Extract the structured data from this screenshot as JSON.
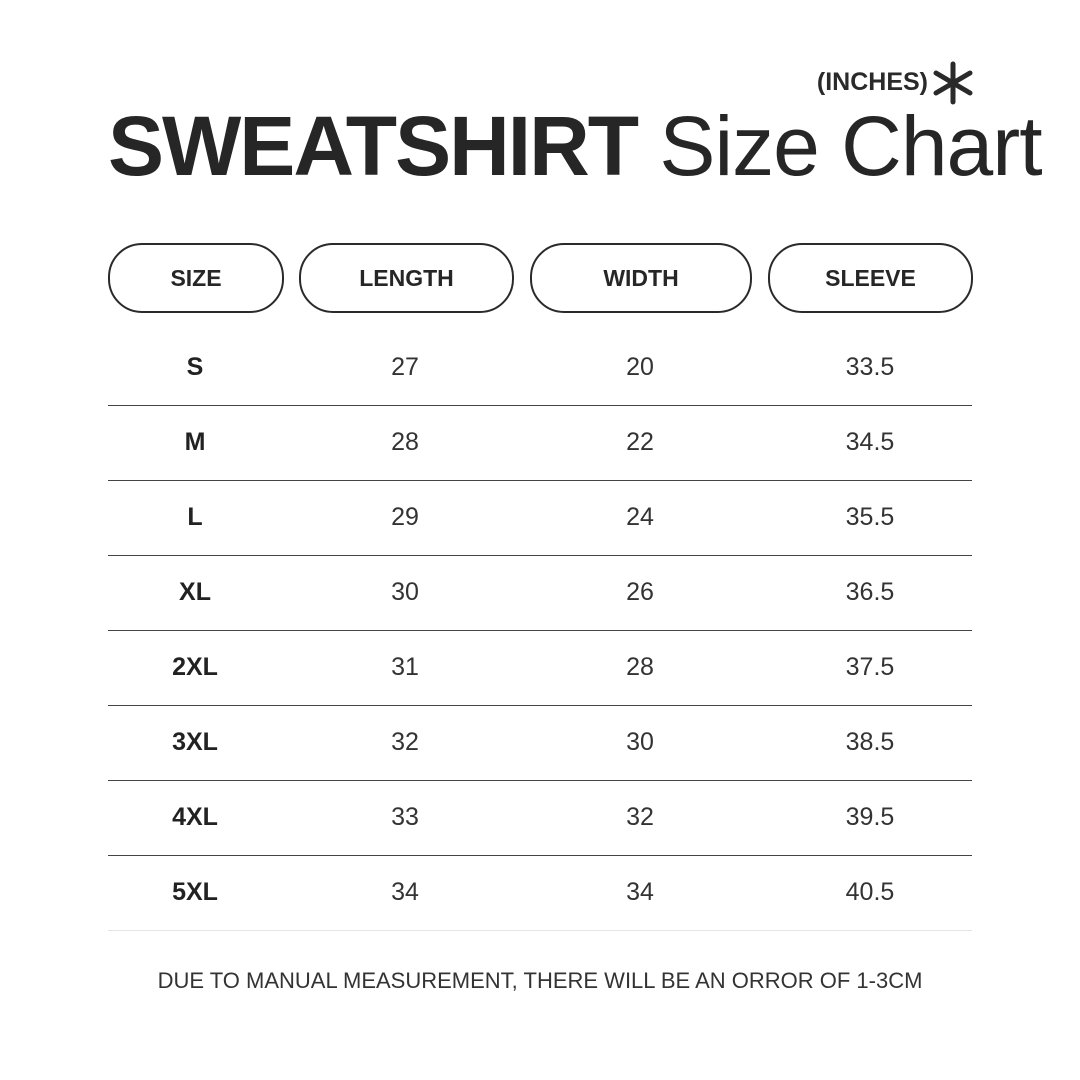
{
  "unit_label": "(INCHES)",
  "icon": "asterisk-icon",
  "title": {
    "bold": "SWEATSHIRT",
    "regular": "Size Chart"
  },
  "headers": [
    "SIZE",
    "LENGTH",
    "WIDTH",
    "SLEEVE"
  ],
  "rows": [
    [
      "S",
      "27",
      "20",
      "33.5"
    ],
    [
      "M",
      "28",
      "22",
      "34.5"
    ],
    [
      "L",
      "29",
      "24",
      "35.5"
    ],
    [
      "XL",
      "30",
      "26",
      "36.5"
    ],
    [
      "2XL",
      "31",
      "28",
      "37.5"
    ],
    [
      "3XL",
      "32",
      "30",
      "38.5"
    ],
    [
      "4XL",
      "33",
      "32",
      "39.5"
    ],
    [
      "5XL",
      "34",
      "34",
      "40.5"
    ]
  ],
  "note": "DUE TO MANUAL MEASUREMENT, THERE WILL BE AN ORROR OF 1-3CM"
}
